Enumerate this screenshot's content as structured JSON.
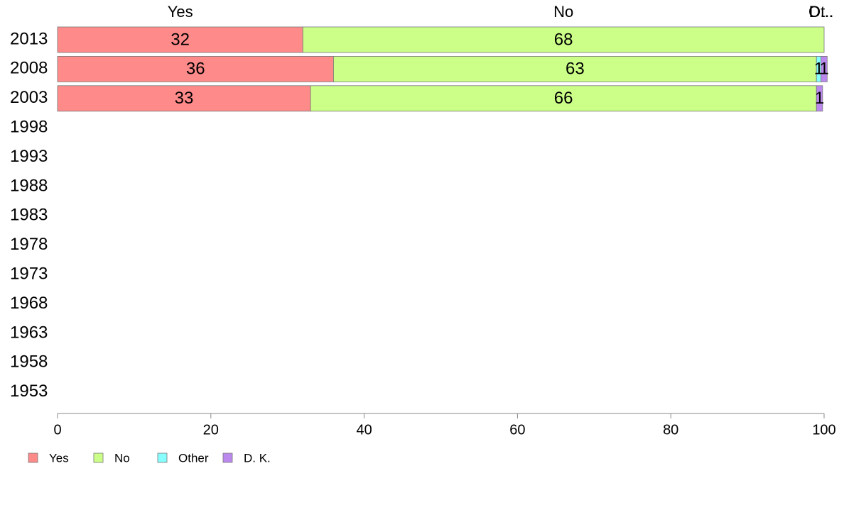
{
  "chart_data": {
    "type": "bar",
    "orientation": "horizontal",
    "stacked": true,
    "categories": [
      "2013",
      "2008",
      "2003",
      "1998",
      "1993",
      "1988",
      "1983",
      "1978",
      "1973",
      "1968",
      "1963",
      "1958",
      "1953"
    ],
    "series": [
      {
        "name": "Yes",
        "color": "#ff8a8a",
        "values": [
          32,
          36,
          33,
          null,
          null,
          null,
          null,
          null,
          null,
          null,
          null,
          null,
          null
        ]
      },
      {
        "name": "No",
        "color": "#ccff88",
        "values": [
          68,
          63,
          66,
          null,
          null,
          null,
          null,
          null,
          null,
          null,
          null,
          null,
          null
        ]
      },
      {
        "name": "Other",
        "color": "#88ffff",
        "values": [
          0,
          0.6,
          0,
          null,
          null,
          null,
          null,
          null,
          null,
          null,
          null,
          null,
          null
        ]
      },
      {
        "name": "D. K.",
        "color": "#bb88ee",
        "values": [
          0,
          0.8,
          0.8,
          null,
          null,
          null,
          null,
          null,
          null,
          null,
          null,
          null,
          null
        ]
      }
    ],
    "data_labels": [
      [
        "32",
        "68",
        "",
        ""
      ],
      [
        "36",
        "63",
        "1",
        "1"
      ],
      [
        "33",
        "66",
        "",
        "1"
      ]
    ],
    "column_labels": [
      "Yes",
      "No",
      "Ot..",
      "D..."
    ],
    "xlim": [
      0,
      100
    ],
    "xticks": [
      0,
      20,
      40,
      60,
      80,
      100
    ],
    "xlabel": "",
    "ylabel": "",
    "title": "",
    "grid": false,
    "legend_position": "bottom-left"
  }
}
